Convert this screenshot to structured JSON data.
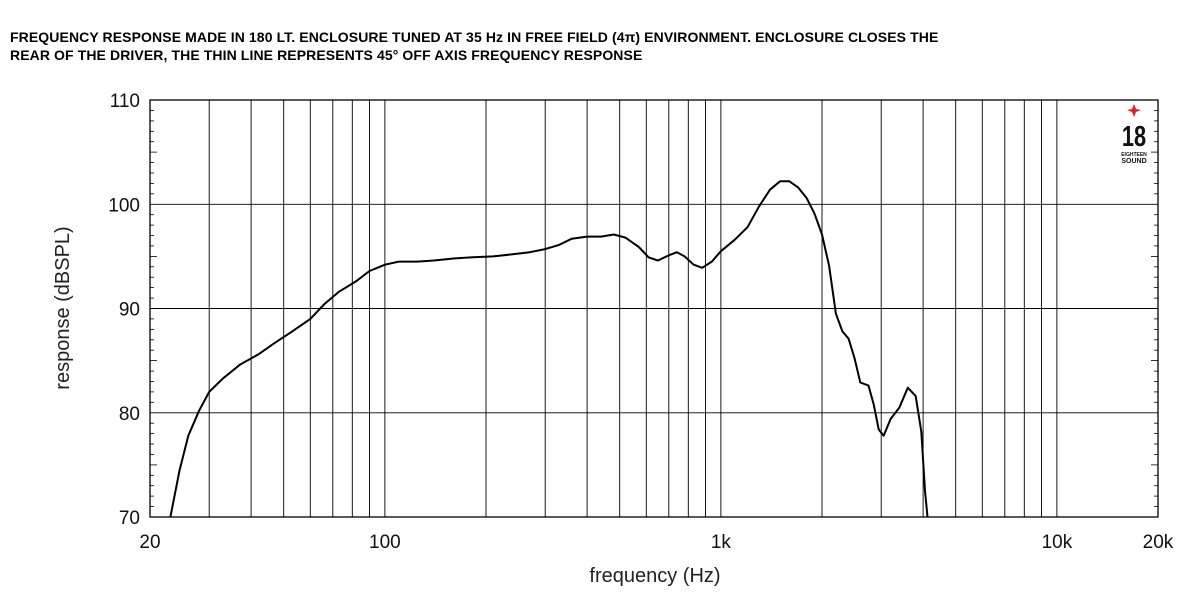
{
  "title_lines": [
    "FREQUENCY RESPONSE MADE IN 180 LT. ENCLOSURE TUNED AT 35 Hz IN FREE FIELD (4π) ENVIRONMENT. ENCLOSURE CLOSES THE",
    "REAR OF THE DRIVER, THE THIN LINE REPRESENTS 45° OFF AXIS FREQUENCY RESPONSE"
  ],
  "logo": {
    "number": "18",
    "text_line1": "EIGHTEEN",
    "text_line2": "SOUND",
    "star_color": "#e0202a"
  },
  "chart_data": {
    "type": "line",
    "title": "",
    "xlabel": "frequency (Hz)",
    "ylabel": "response (dBSPL)",
    "xscale": "log",
    "xlim": [
      20,
      20000
    ],
    "ylim": [
      70,
      110
    ],
    "x_tick_labels": [
      {
        "value": 20,
        "label": "20"
      },
      {
        "value": 100,
        "label": "100"
      },
      {
        "value": 1000,
        "label": "1k"
      },
      {
        "value": 10000,
        "label": "10k"
      },
      {
        "value": 20000,
        "label": "20k"
      }
    ],
    "y_tick_labels": [
      {
        "value": 70,
        "label": "70"
      },
      {
        "value": 80,
        "label": "80"
      },
      {
        "value": 90,
        "label": "90"
      },
      {
        "value": 100,
        "label": "100"
      },
      {
        "value": 110,
        "label": "110"
      }
    ],
    "grid": true,
    "series": [
      {
        "color": "#000000",
        "points": [
          [
            23,
            70
          ],
          [
            24.5,
            74.5
          ],
          [
            26,
            77.8
          ],
          [
            28,
            80.2
          ],
          [
            30,
            82.0
          ],
          [
            33,
            83.3
          ],
          [
            37,
            84.6
          ],
          [
            42,
            85.6
          ],
          [
            47,
            86.7
          ],
          [
            53,
            87.8
          ],
          [
            60,
            89.0
          ],
          [
            66,
            90.4
          ],
          [
            73,
            91.6
          ],
          [
            82,
            92.6
          ],
          [
            90,
            93.6
          ],
          [
            100,
            94.2
          ],
          [
            110,
            94.5
          ],
          [
            125,
            94.5
          ],
          [
            140,
            94.6
          ],
          [
            160,
            94.8
          ],
          [
            180,
            94.9
          ],
          [
            210,
            95.0
          ],
          [
            240,
            95.2
          ],
          [
            270,
            95.4
          ],
          [
            300,
            95.7
          ],
          [
            330,
            96.1
          ],
          [
            360,
            96.7
          ],
          [
            400,
            96.9
          ],
          [
            440,
            96.9
          ],
          [
            480,
            97.1
          ],
          [
            520,
            96.8
          ],
          [
            570,
            95.9
          ],
          [
            610,
            94.9
          ],
          [
            650,
            94.6
          ],
          [
            700,
            95.1
          ],
          [
            740,
            95.4
          ],
          [
            780,
            95.0
          ],
          [
            830,
            94.2
          ],
          [
            880,
            93.9
          ],
          [
            940,
            94.5
          ],
          [
            1000,
            95.5
          ],
          [
            1100,
            96.6
          ],
          [
            1200,
            97.8
          ],
          [
            1300,
            99.8
          ],
          [
            1400,
            101.4
          ],
          [
            1500,
            102.2
          ],
          [
            1600,
            102.2
          ],
          [
            1700,
            101.6
          ],
          [
            1800,
            100.6
          ],
          [
            1900,
            99.1
          ],
          [
            2000,
            97.1
          ],
          [
            2100,
            94.1
          ],
          [
            2200,
            89.5
          ],
          [
            2300,
            87.8
          ],
          [
            2400,
            87.1
          ],
          [
            2500,
            85.2
          ],
          [
            2600,
            82.9
          ],
          [
            2750,
            82.6
          ],
          [
            2850,
            80.8
          ],
          [
            2950,
            78.4
          ],
          [
            3050,
            77.8
          ],
          [
            3200,
            79.4
          ],
          [
            3400,
            80.5
          ],
          [
            3600,
            82.4
          ],
          [
            3800,
            81.6
          ],
          [
            3950,
            78.2
          ],
          [
            4050,
            72.5
          ],
          [
            4120,
            70
          ]
        ]
      }
    ]
  }
}
